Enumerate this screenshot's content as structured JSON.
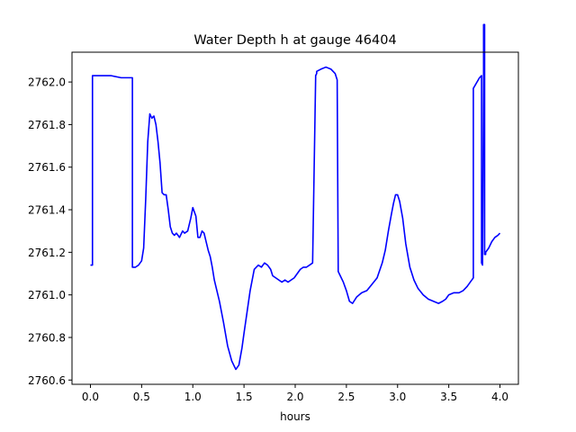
{
  "chart_data": {
    "type": "line",
    "title": "Water Depth h at gauge 46404",
    "xlabel": "hours",
    "ylabel": "",
    "xlim": [
      -0.18,
      4.18
    ],
    "ylim": [
      2760.58,
      2762.14
    ],
    "xticks": [
      0.0,
      0.5,
      1.0,
      1.5,
      2.0,
      2.5,
      3.0,
      3.5,
      4.0
    ],
    "xtick_labels": [
      "0.0",
      "0.5",
      "1.0",
      "1.5",
      "2.0",
      "2.5",
      "3.0",
      "3.5",
      "4.0"
    ],
    "yticks": [
      2760.6,
      2760.8,
      2761.0,
      2761.2,
      2761.4,
      2761.6,
      2761.8,
      2762.0
    ],
    "ytick_labels": [
      "2760.6",
      "2760.8",
      "2761.0",
      "2761.2",
      "2761.4",
      "2761.6",
      "2761.8",
      "2762.0"
    ],
    "grid": false,
    "series": [
      {
        "name": "",
        "color": "#0000ff",
        "x": [
          0.0,
          0.02,
          0.02,
          0.1,
          0.2,
          0.3,
          0.4,
          0.41,
          0.41,
          0.44,
          0.47,
          0.5,
          0.52,
          0.54,
          0.56,
          0.58,
          0.6,
          0.62,
          0.64,
          0.66,
          0.68,
          0.7,
          0.72,
          0.74,
          0.76,
          0.78,
          0.8,
          0.82,
          0.84,
          0.87,
          0.9,
          0.92,
          0.95,
          0.98,
          1.0,
          1.03,
          1.05,
          1.07,
          1.09,
          1.11,
          1.13,
          1.15,
          1.17,
          1.19,
          1.21,
          1.23,
          1.26,
          1.3,
          1.34,
          1.38,
          1.42,
          1.45,
          1.48,
          1.5,
          1.53,
          1.56,
          1.6,
          1.64,
          1.67,
          1.7,
          1.73,
          1.76,
          1.78,
          1.81,
          1.84,
          1.87,
          1.9,
          1.93,
          1.96,
          1.99,
          2.02,
          2.05,
          2.08,
          2.11,
          2.14,
          2.17,
          2.2,
          2.21,
          2.21,
          2.25,
          2.3,
          2.35,
          2.39,
          2.41,
          2.42,
          2.42,
          2.44,
          2.47,
          2.5,
          2.53,
          2.56,
          2.6,
          2.65,
          2.7,
          2.75,
          2.8,
          2.85,
          2.88,
          2.91,
          2.94,
          2.96,
          2.98,
          3.0,
          3.02,
          3.05,
          3.08,
          3.12,
          3.16,
          3.2,
          3.25,
          3.3,
          3.35,
          3.4,
          3.44,
          3.47,
          3.5,
          3.55,
          3.6,
          3.64,
          3.68,
          3.71,
          3.74,
          3.74,
          3.8,
          3.82,
          3.82,
          3.83,
          3.84,
          3.84,
          3.85,
          3.85,
          3.86,
          3.86,
          3.89,
          3.92,
          3.95,
          3.98,
          4.0
        ],
        "y": [
          2761.14,
          2761.14,
          2762.03,
          2762.03,
          2762.03,
          2762.02,
          2762.02,
          2762.02,
          2761.13,
          2761.13,
          2761.14,
          2761.16,
          2761.22,
          2761.45,
          2761.72,
          2761.85,
          2761.83,
          2761.84,
          2761.8,
          2761.72,
          2761.62,
          2761.48,
          2761.47,
          2761.47,
          2761.4,
          2761.32,
          2761.29,
          2761.28,
          2761.29,
          2761.27,
          2761.3,
          2761.29,
          2761.3,
          2761.36,
          2761.41,
          2761.37,
          2761.27,
          2761.27,
          2761.3,
          2761.29,
          2761.25,
          2761.21,
          2761.18,
          2761.13,
          2761.07,
          2761.03,
          2760.97,
          2760.87,
          2760.76,
          2760.69,
          2760.65,
          2760.67,
          2760.75,
          2760.82,
          2760.92,
          2761.02,
          2761.12,
          2761.14,
          2761.13,
          2761.15,
          2761.14,
          2761.12,
          2761.09,
          2761.08,
          2761.07,
          2761.06,
          2761.07,
          2761.06,
          2761.07,
          2761.08,
          2761.1,
          2761.12,
          2761.13,
          2761.13,
          2761.14,
          2761.15,
          2762.03,
          2762.04,
          2762.05,
          2762.06,
          2762.07,
          2762.06,
          2762.04,
          2762.01,
          2761.13,
          2761.11,
          2761.09,
          2761.06,
          2761.02,
          2760.97,
          2760.96,
          2760.99,
          2761.01,
          2761.02,
          2761.05,
          2761.08,
          2761.15,
          2761.21,
          2761.3,
          2761.38,
          2761.43,
          2761.47,
          2761.47,
          2761.44,
          2761.36,
          2761.24,
          2761.13,
          2761.07,
          2761.03,
          2761.0,
          2760.98,
          2760.97,
          2760.96,
          2760.97,
          2760.98,
          2761.0,
          2761.01,
          2761.01,
          2761.02,
          2761.04,
          2761.06,
          2761.08,
          2761.97,
          2762.02,
          2762.03,
          2761.15,
          2761.14,
          2762.02,
          2762.27,
          2762.27,
          2761.19,
          2761.19,
          2761.2,
          2761.22,
          2761.25,
          2761.27,
          2761.28,
          2761.29
        ]
      }
    ]
  }
}
